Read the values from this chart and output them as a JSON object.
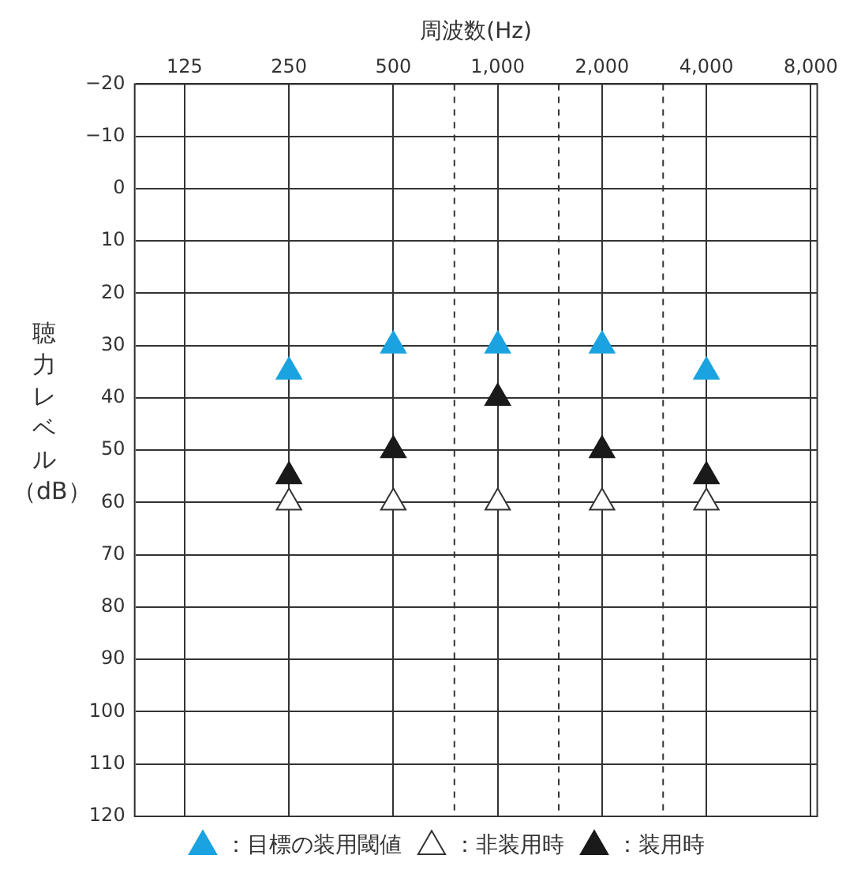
{
  "chart_data": {
    "type": "scatter",
    "xlabel": "周波数(Hz)",
    "ylabel": "聴力レベル（dB）",
    "log": "x",
    "x": [
      250,
      500,
      1000,
      2000,
      4000
    ],
    "xlim": [
      89.7,
      8350
    ],
    "xticks": [
      125,
      250,
      500,
      {
        "value": 1000,
        "label": "1,000"
      },
      {
        "value": 2000,
        "label": "2,000"
      },
      {
        "value": 4000,
        "label": "4,000"
      },
      {
        "value": 8000,
        "label": "8,000"
      }
    ],
    "ylim": [
      120,
      -20
    ],
    "yticks": [
      {
        "value": -20,
        "label": "−20"
      },
      {
        "value": -10,
        "label": "−10"
      },
      0,
      10,
      20,
      30,
      40,
      50,
      60,
      70,
      80,
      90,
      100,
      110,
      120
    ],
    "grid": true,
    "marker": "triangle",
    "legend": "bottom",
    "series": [
      {
        "name": "：目標の装用閾値",
        "color": "#1aa3e0",
        "values": [
          35,
          30,
          30,
          30,
          35
        ]
      },
      {
        "name": "：非装用時",
        "color": "#ffffff",
        "values": [
          60,
          60,
          60,
          60,
          60
        ]
      },
      {
        "name": "：装用時",
        "color": "#1a1a1a",
        "values": [
          55,
          50,
          40,
          50,
          55
        ]
      }
    ],
    "ref_lines": [
      {
        "axis": "x",
        "value": 750,
        "line_style": "dashed"
      },
      {
        "axis": "x",
        "value": 1500,
        "line_style": "dashed"
      },
      {
        "axis": "x",
        "value": 3000,
        "line_style": "dashed"
      }
    ]
  }
}
